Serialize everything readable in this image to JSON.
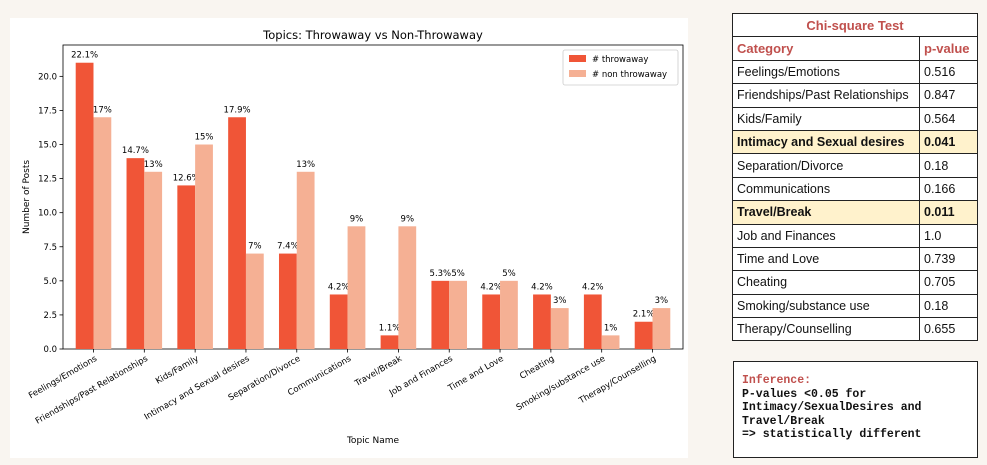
{
  "chart_data": {
    "type": "bar",
    "title": "Topics: Throwaway vs Non-Throwaway",
    "xlabel": "Topic Name",
    "ylabel": "Number of Posts",
    "categories": [
      "Feelings/Emotions",
      "Friendships/Past Relationships",
      "Kids/Family",
      "Intimacy and Sexual desires",
      "Separation/Divorce",
      "Communications",
      "Travel/Break",
      "Job and Finances",
      "Time and Love",
      "Cheating",
      "Smoking/substance use",
      "Therapy/Counselling"
    ],
    "series": [
      {
        "name": "# throwaway",
        "color": "#f05537",
        "values": [
          21,
          14,
          12,
          17,
          7,
          4,
          1,
          5,
          4,
          4,
          4,
          2
        ],
        "labels": [
          "22.1%",
          "14.7%",
          "12.6%",
          "17.9%",
          "7.4%",
          "4.2%",
          "1.1%",
          "5.3%",
          "4.2%",
          "4.2%",
          "4.2%",
          "2.1%"
        ]
      },
      {
        "name": "# non throwaway",
        "color": "#f5b094",
        "values": [
          17,
          13,
          15,
          7,
          13,
          9,
          9,
          5,
          5,
          3,
          1,
          3
        ],
        "labels": [
          "17%",
          "13%",
          "15%",
          "7%",
          "13%",
          "9%",
          "9%",
          "5%",
          "5%",
          "3%",
          "1%",
          "3%"
        ]
      }
    ],
    "ylim": [
      0,
      22.3
    ],
    "yticks": [
      0.0,
      2.5,
      5.0,
      7.5,
      10.0,
      12.5,
      15.0,
      17.5,
      20.0
    ],
    "ytick_labels": [
      "0.0",
      "2.5",
      "5.0",
      "7.5",
      "10.0",
      "12.5",
      "15.0",
      "17.5",
      "20.0"
    ],
    "legend_position": "top-right",
    "grid": false
  },
  "table": {
    "title": "Chi-square Test",
    "headers": [
      "Category",
      "p-value"
    ],
    "rows": [
      {
        "category": "Feelings/Emotions",
        "p": "0.516",
        "highlight": false
      },
      {
        "category": "Friendships/Past Relationships",
        "p": "0.847",
        "highlight": false
      },
      {
        "category": "Kids/Family",
        "p": "0.564",
        "highlight": false
      },
      {
        "category": "Intimacy and Sexual desires",
        "p": "0.041",
        "highlight": true
      },
      {
        "category": "Separation/Divorce",
        "p": "0.18",
        "highlight": false
      },
      {
        "category": "Communications",
        "p": "0.166",
        "highlight": false
      },
      {
        "category": "Travel/Break",
        "p": "0.011",
        "highlight": true
      },
      {
        "category": "Job and Finances",
        "p": "1.0",
        "highlight": false
      },
      {
        "category": "Time and Love",
        "p": "0.739",
        "highlight": false
      },
      {
        "category": "Cheating",
        "p": "0.705",
        "highlight": false
      },
      {
        "category": "Smoking/substance use",
        "p": "0.18",
        "highlight": false
      },
      {
        "category": "Therapy/Counselling",
        "p": "0.655",
        "highlight": false
      }
    ]
  },
  "inference": {
    "title": "Inference:",
    "lines": [
      "P-values <0.05 for",
      "Intimacy/SexualDesires and",
      "Travel/Break",
      "=> statistically different"
    ]
  }
}
